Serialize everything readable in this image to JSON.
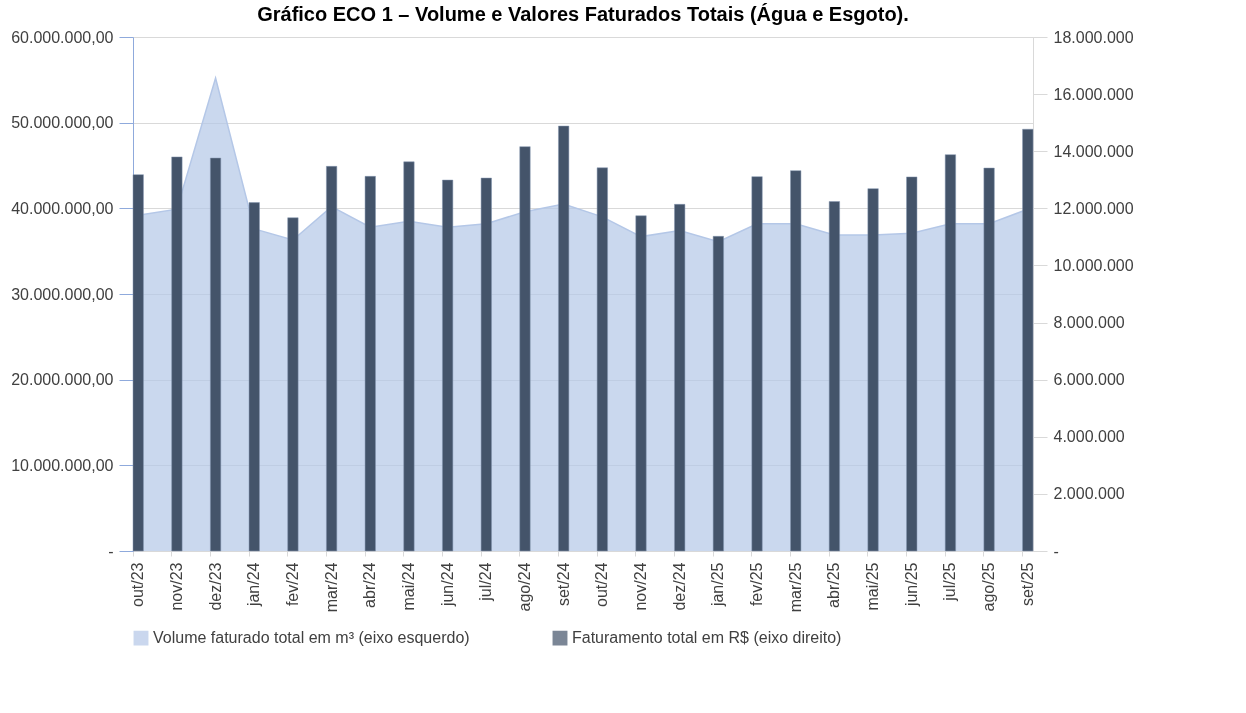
{
  "chart_data": {
    "type": "bar",
    "title": "Gráfico ECO 1 – Volume e Valores Faturados Totais (Água e Esgoto).",
    "categories": [
      "out/23",
      "nov/23",
      "dez/23",
      "jan/24",
      "fev/24",
      "mar/24",
      "abr/24",
      "mai/24",
      "jun/24",
      "jul/24",
      "ago/24",
      "set/24",
      "out/24",
      "nov/24",
      "dez/24",
      "jan/25",
      "fev/25",
      "mar/25",
      "abr/25",
      "mai/25",
      "jun/25",
      "jul/25",
      "ago/25",
      "set/25"
    ],
    "series": [
      {
        "name": "Volume faturado total em m³ (eixo esquerdo)",
        "type": "area",
        "color": "#b4c7e7",
        "values": [
          39200000,
          39900000,
          55200000,
          37600000,
          36300000,
          40200000,
          37800000,
          38500000,
          37800000,
          38200000,
          39600000,
          40500000,
          39000000,
          36700000,
          37400000,
          36100000,
          38200000,
          38200000,
          36900000,
          36900000,
          37100000,
          38200000,
          38200000,
          39900000
        ]
      },
      {
        "name": "Faturamento total em R$ (eixo direito)",
        "axis": "y2",
        "color": "#44546a",
        "values": [
          13180000,
          13800000,
          13760000,
          12200000,
          11670000,
          13470000,
          13120000,
          13630000,
          12990000,
          13060000,
          14160000,
          14880000,
          13420000,
          11740000,
          12140000,
          11020000,
          13110000,
          13320000,
          12240000,
          12690000,
          13100000,
          13880000,
          13410000,
          14770000
        ]
      }
    ],
    "ylim": [
      0,
      60000000
    ],
    "yticks": [
      {
        "value": 0,
        "label": "-"
      },
      {
        "value": 10000000,
        "label": "10.000.000,00"
      },
      {
        "value": 20000000,
        "label": "20.000.000,00"
      },
      {
        "value": 30000000,
        "label": "30.000.000,00"
      },
      {
        "value": 40000000,
        "label": "40.000.000,00"
      },
      {
        "value": 50000000,
        "label": "50.000.000,00"
      },
      {
        "value": 60000000,
        "label": "60.000.000,00"
      }
    ],
    "y2lim": [
      0,
      18000000
    ],
    "y2ticks": [
      {
        "value": 0,
        "label": "-"
      },
      {
        "value": 2000000,
        "label": "2.000.000"
      },
      {
        "value": 4000000,
        "label": "4.000.000"
      },
      {
        "value": 6000000,
        "label": "6.000.000"
      },
      {
        "value": 8000000,
        "label": "8.000.000"
      },
      {
        "value": 10000000,
        "label": "10.000.000"
      },
      {
        "value": 12000000,
        "label": "12.000.000"
      },
      {
        "value": 14000000,
        "label": "14.000.000"
      },
      {
        "value": 16000000,
        "label": "16.000.000"
      },
      {
        "value": 18000000,
        "label": "18.000.000"
      }
    ],
    "grid": "y",
    "legend": "bottom"
  }
}
